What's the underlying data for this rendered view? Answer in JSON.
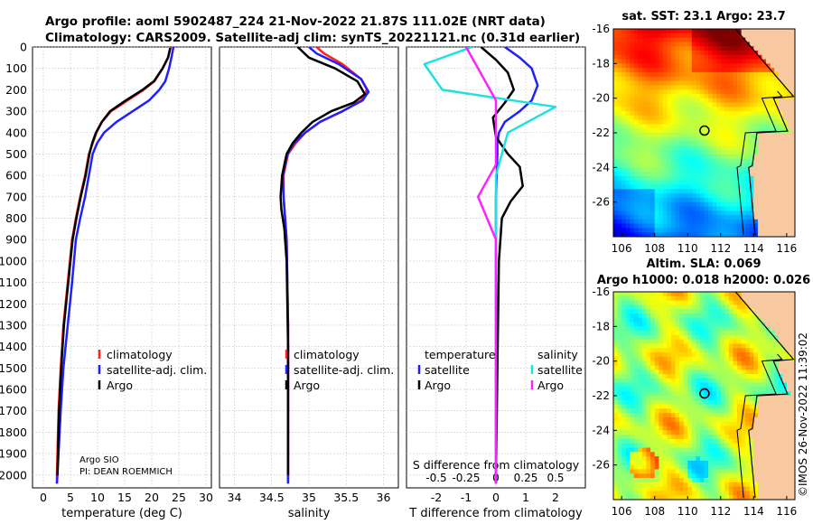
{
  "header": {
    "title_line1": "Argo profile: aoml 5902487_224 21-Nov-2022 21.87S 111.02E (NRT data)",
    "title_line2": "Climatology: CARS2009. Satellite-adj clim: synTS_20221121.nc (0.31d earlier)"
  },
  "credits": {
    "line1": "Argo SIO",
    "line2": "PI: DEAN ROEMMICH"
  },
  "timestamp": "©IMOS 26-Nov-2022 11:39:02",
  "colors": {
    "climatology": "#ff2020",
    "satellite": "#2020ff",
    "argo": "#000000",
    "sat_salinity": "#20e0e0",
    "argo_salinity": "#ff20ff",
    "land": "#f8c8a0"
  },
  "chart_data": [
    {
      "type": "line",
      "title": "temperature profile",
      "xlabel": "temperature (deg C)",
      "ylabel": "",
      "xlim": [
        -2,
        31
      ],
      "ylim": [
        2060,
        0
      ],
      "xticks": [
        "0",
        "5",
        "10",
        "15",
        "20",
        "25",
        "30"
      ],
      "xtick_values": [
        0,
        5,
        10,
        15,
        20,
        25,
        30
      ],
      "yticks": [
        "0",
        "100",
        "200",
        "300",
        "400",
        "500",
        "600",
        "700",
        "800",
        "900",
        "1000",
        "1100",
        "1200",
        "1300",
        "1400",
        "1500",
        "1600",
        "1700",
        "1800",
        "1900",
        "2000"
      ],
      "ytick_values": [
        0,
        100,
        200,
        300,
        400,
        500,
        600,
        700,
        800,
        900,
        1000,
        1100,
        1200,
        1300,
        1400,
        1500,
        1600,
        1700,
        1800,
        1900,
        2000
      ],
      "legend": [
        "climatology",
        "satellite-adj. clim.",
        "Argo"
      ],
      "series": [
        {
          "name": "climatology",
          "color": "#ff2020",
          "x": [
            23.5,
            23,
            22,
            20.5,
            18.5,
            15.5,
            12.5,
            10.8,
            9.8,
            9.1,
            8.4,
            7.7,
            6.8,
            6.0,
            5.3,
            4.5,
            3.7,
            3.2,
            2.8,
            2.6,
            2.5,
            2.5
          ],
          "y": [
            0,
            50,
            100,
            160,
            200,
            250,
            300,
            350,
            400,
            450,
            500,
            600,
            700,
            800,
            900,
            1100,
            1300,
            1500,
            1700,
            1900,
            2000,
            2040
          ]
        },
        {
          "name": "satellite-adj. clim.",
          "color": "#2020ff",
          "x": [
            24,
            23.7,
            23.2,
            22.5,
            21.4,
            19.5,
            16.5,
            13.5,
            11.2,
            9.9,
            9.1,
            8.4,
            7.7,
            6.8,
            6.0,
            5.3,
            4.5,
            3.7,
            3.2,
            2.8,
            2.6,
            2.5
          ],
          "y": [
            0,
            40,
            100,
            160,
            200,
            250,
            300,
            350,
            400,
            450,
            500,
            600,
            700,
            800,
            900,
            1100,
            1300,
            1500,
            1700,
            1900,
            2000,
            2040
          ]
        },
        {
          "name": "Argo",
          "color": "#000000",
          "x": [
            23.4,
            23,
            22,
            20.4,
            18.3,
            15.2,
            12.3,
            10.8,
            9.7,
            9.0,
            8.5,
            7.8,
            6.9,
            6.1,
            5.4,
            4.6,
            3.8,
            3.3,
            2.9,
            2.7,
            2.6
          ],
          "y": [
            5,
            50,
            100,
            160,
            200,
            250,
            300,
            350,
            400,
            450,
            500,
            600,
            700,
            800,
            900,
            1100,
            1300,
            1500,
            1700,
            1900,
            2000
          ]
        }
      ]
    },
    {
      "type": "line",
      "title": "salinity profile",
      "xlabel": "salinity",
      "ylabel": "",
      "xlim": [
        33.8,
        36.2
      ],
      "ylim": [
        2060,
        0
      ],
      "xticks": [
        "34",
        "34.5",
        "35",
        "35.5",
        "36"
      ],
      "xtick_values": [
        34,
        34.5,
        35,
        35.5,
        36
      ],
      "legend": [
        "climatology",
        "satellite-adj. clim.",
        "Argo"
      ],
      "series": [
        {
          "name": "climatology",
          "color": "#ff2020",
          "x": [
            35.1,
            35.2,
            35.45,
            35.7,
            35.78,
            35.7,
            35.45,
            35.15,
            34.95,
            34.82,
            34.72,
            34.66,
            34.66,
            34.68,
            34.7,
            34.71,
            34.72,
            34.72,
            34.72,
            34.72
          ],
          "y": [
            0,
            30,
            80,
            150,
            200,
            250,
            300,
            350,
            400,
            450,
            500,
            600,
            700,
            800,
            900,
            1100,
            1300,
            1500,
            1800,
            2040
          ]
        },
        {
          "name": "satellite-adj. clim.",
          "color": "#2020ff",
          "x": [
            35.0,
            35.1,
            35.4,
            35.7,
            35.8,
            35.72,
            35.45,
            35.15,
            34.95,
            34.8,
            34.71,
            34.65,
            34.66,
            34.68,
            34.7,
            34.71,
            34.72,
            34.72,
            34.72,
            34.72
          ],
          "y": [
            0,
            30,
            80,
            150,
            210,
            250,
            300,
            350,
            400,
            450,
            500,
            600,
            700,
            800,
            900,
            1100,
            1300,
            1500,
            1800,
            2040
          ]
        },
        {
          "name": "Argo",
          "color": "#000000",
          "x": [
            34.85,
            35.0,
            35.35,
            35.65,
            35.75,
            35.6,
            35.3,
            35.05,
            34.9,
            34.78,
            34.7,
            34.64,
            34.62,
            34.63,
            34.67,
            34.7,
            34.71,
            34.72,
            34.72,
            34.72
          ],
          "y": [
            0,
            50,
            100,
            160,
            220,
            260,
            300,
            350,
            400,
            450,
            500,
            600,
            700,
            760,
            850,
            1000,
            1200,
            1400,
            1700,
            2000
          ]
        }
      ]
    },
    {
      "type": "line",
      "title": "difference from climatology",
      "xlabel": "T difference from climatology",
      "xlabel_top": "S difference from climatology",
      "xlim": [
        -3,
        3
      ],
      "ylim": [
        2060,
        0
      ],
      "xticks": [
        "-2",
        "-1",
        "0",
        "1",
        "2"
      ],
      "xtick_values": [
        -2,
        -1,
        0,
        1,
        2
      ],
      "sticks": [
        "-0.5",
        "-0.25",
        "0",
        "0.25",
        "0.5"
      ],
      "stick_values": [
        -0.5,
        -0.25,
        0,
        0.25,
        0.5
      ],
      "legend_temperature": [
        "temperature",
        "satellite",
        "Argo"
      ],
      "legend_salinity": [
        "salinity",
        "satellite",
        "Argo"
      ],
      "series": [
        {
          "name": "temperature satellite",
          "color": "#2020ff",
          "x": [
            0.3,
            0.8,
            1.2,
            1.4,
            1.2,
            0.8,
            0.3,
            0.1,
            0.05,
            0.05,
            0.0,
            0.0,
            0.0,
            0.0,
            0.0
          ],
          "y": [
            0,
            50,
            100,
            180,
            250,
            300,
            350,
            400,
            450,
            500,
            700,
            900,
            1200,
            1600,
            2040
          ]
        },
        {
          "name": "temperature Argo",
          "color": "#000000",
          "x": [
            -0.5,
            0.0,
            0.4,
            0.6,
            0.3,
            -0.1,
            0.0,
            0.4,
            0.8,
            0.9,
            0.5,
            0.2,
            0.1,
            0.05,
            0.0
          ],
          "y": [
            0,
            60,
            120,
            200,
            260,
            330,
            420,
            500,
            560,
            650,
            720,
            800,
            1000,
            1500,
            2040
          ]
        },
        {
          "name": "salinity satellite",
          "color": "#20e0e0",
          "x": [
            -0.2,
            -0.6,
            -0.45,
            0.5,
            0.1,
            0.0,
            0.0,
            0.0,
            0.0
          ],
          "y": [
            0,
            80,
            200,
            280,
            400,
            600,
            900,
            1400,
            2040
          ]
        },
        {
          "name": "salinity Argo",
          "color": "#ff20ff",
          "x": [
            -0.25,
            -0.15,
            0.0,
            0.0,
            0.0,
            -0.15,
            0.0,
            0.0,
            0.0
          ],
          "y": [
            0,
            100,
            250,
            400,
            550,
            700,
            900,
            1400,
            2040
          ]
        }
      ]
    },
    {
      "type": "heatmap",
      "title": "sat. SST: 23.1 Argo: 23.7",
      "xlim": [
        105.5,
        116.5
      ],
      "ylim": [
        -28,
        -16
      ],
      "xticks": [
        "106",
        "108",
        "110",
        "112",
        "114",
        "116"
      ],
      "xtick_values": [
        106,
        108,
        110,
        112,
        114,
        116
      ],
      "yticks": [
        "-16",
        "-18",
        "-20",
        "-22",
        "-24",
        "-26"
      ],
      "ytick_values": [
        -16,
        -18,
        -20,
        -22,
        -24,
        -26
      ],
      "marker": {
        "lon": 111.02,
        "lat": -21.87
      }
    },
    {
      "type": "heatmap",
      "title_line1": "Altim. SLA: 0.069",
      "title_line2": "Argo h1000: 0.018 h2000: 0.026",
      "xlim": [
        105.5,
        116.5
      ],
      "ylim": [
        -28,
        -16
      ],
      "xticks": [
        "106",
        "108",
        "110",
        "112",
        "114",
        "116"
      ],
      "xtick_values": [
        106,
        108,
        110,
        112,
        114,
        116
      ],
      "yticks": [
        "-16",
        "-18",
        "-20",
        "-22",
        "-24",
        "-26"
      ],
      "ytick_values": [
        -16,
        -18,
        -20,
        -22,
        -24,
        -26
      ],
      "marker": {
        "lon": 111.02,
        "lat": -21.87
      }
    }
  ]
}
